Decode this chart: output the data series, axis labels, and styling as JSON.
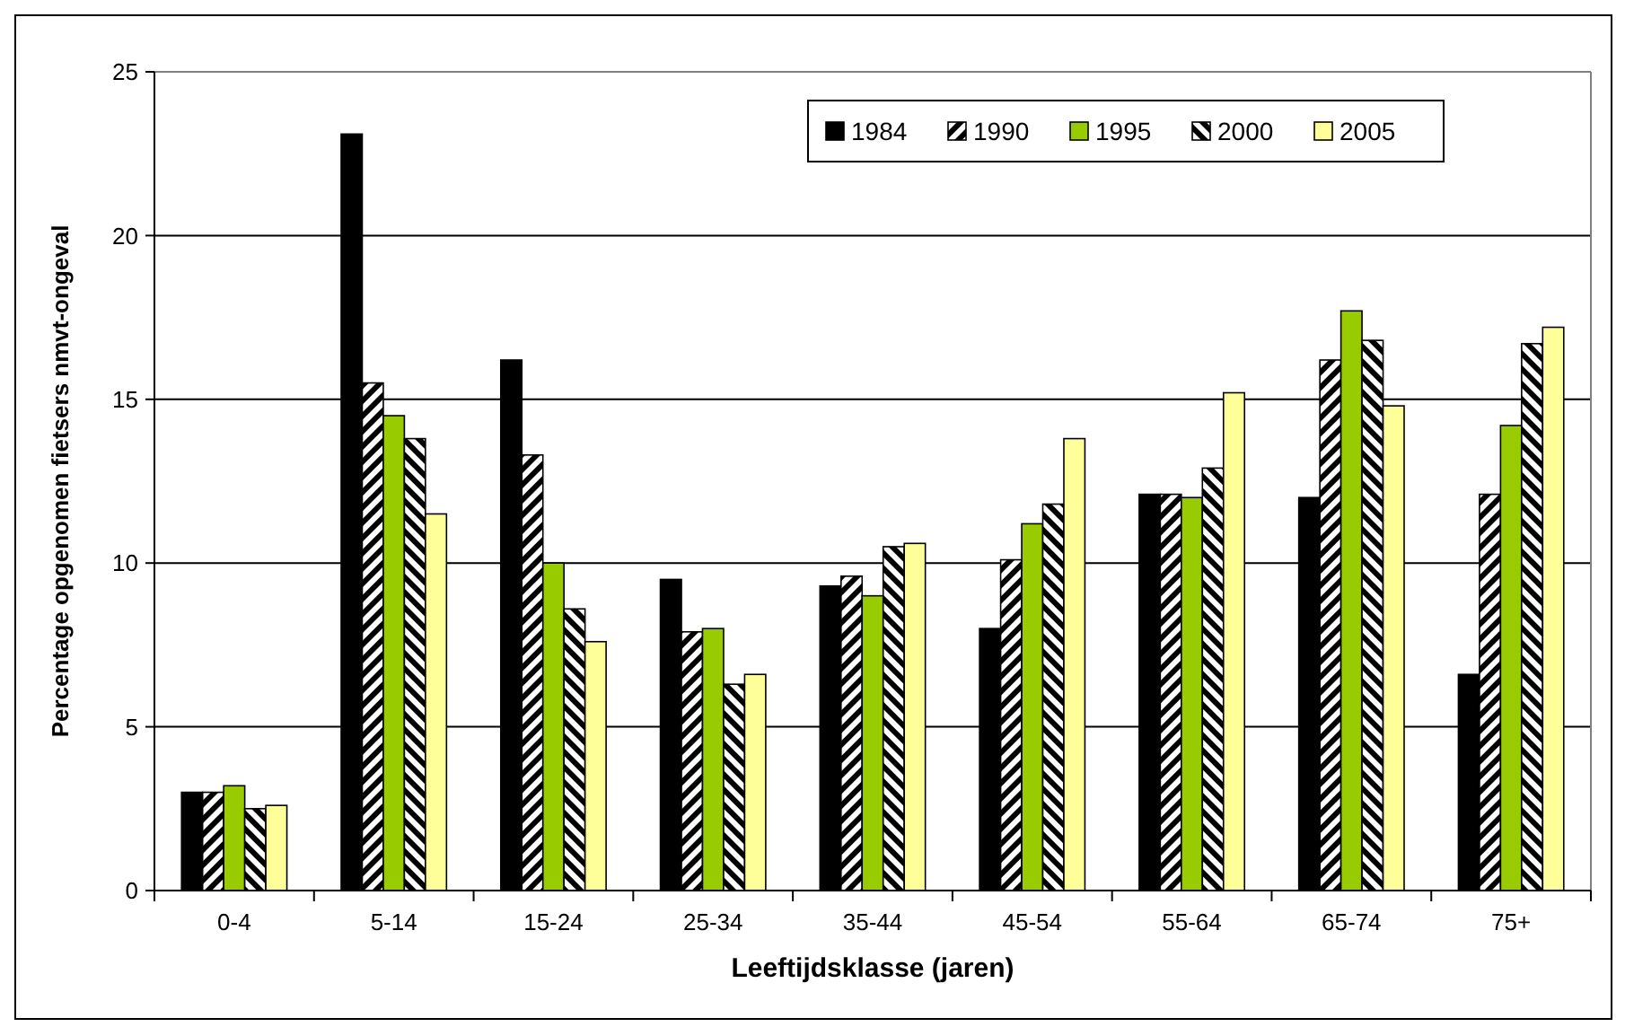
{
  "chart_data": {
    "type": "bar",
    "xlabel": "Leeftijdsklasse (jaren)",
    "ylabel": "Percentage opgenomen fietsers nmvt-ongeval",
    "categories": [
      "0-4",
      "5-14",
      "15-24",
      "25-34",
      "35-44",
      "45-54",
      "55-64",
      "65-74",
      "75+"
    ],
    "series": [
      {
        "name": "1984",
        "color": "#000000",
        "values": [
          3.0,
          23.1,
          16.2,
          9.5,
          9.3,
          8.0,
          12.1,
          12.0,
          6.6
        ]
      },
      {
        "name": "1990",
        "color": "#000000",
        "values": [
          3.0,
          15.5,
          13.3,
          7.9,
          9.6,
          10.1,
          12.1,
          16.2,
          12.1
        ]
      },
      {
        "name": "1995",
        "color": "#99cc00",
        "values": [
          3.2,
          14.5,
          10.0,
          8.0,
          9.0,
          11.2,
          12.0,
          17.7,
          14.2
        ]
      },
      {
        "name": "2000",
        "color": "#000000",
        "values": [
          2.5,
          13.8,
          8.6,
          6.3,
          10.5,
          11.8,
          12.9,
          16.8,
          16.7
        ]
      },
      {
        "name": "2005",
        "color": "#ffff99",
        "values": [
          2.6,
          11.5,
          7.6,
          6.6,
          10.6,
          13.8,
          15.2,
          14.8,
          17.2
        ]
      }
    ],
    "ylim": [
      0,
      25
    ],
    "yticks": [
      0,
      5,
      10,
      15,
      20,
      25
    ],
    "grid": "y",
    "legend": "top right"
  }
}
